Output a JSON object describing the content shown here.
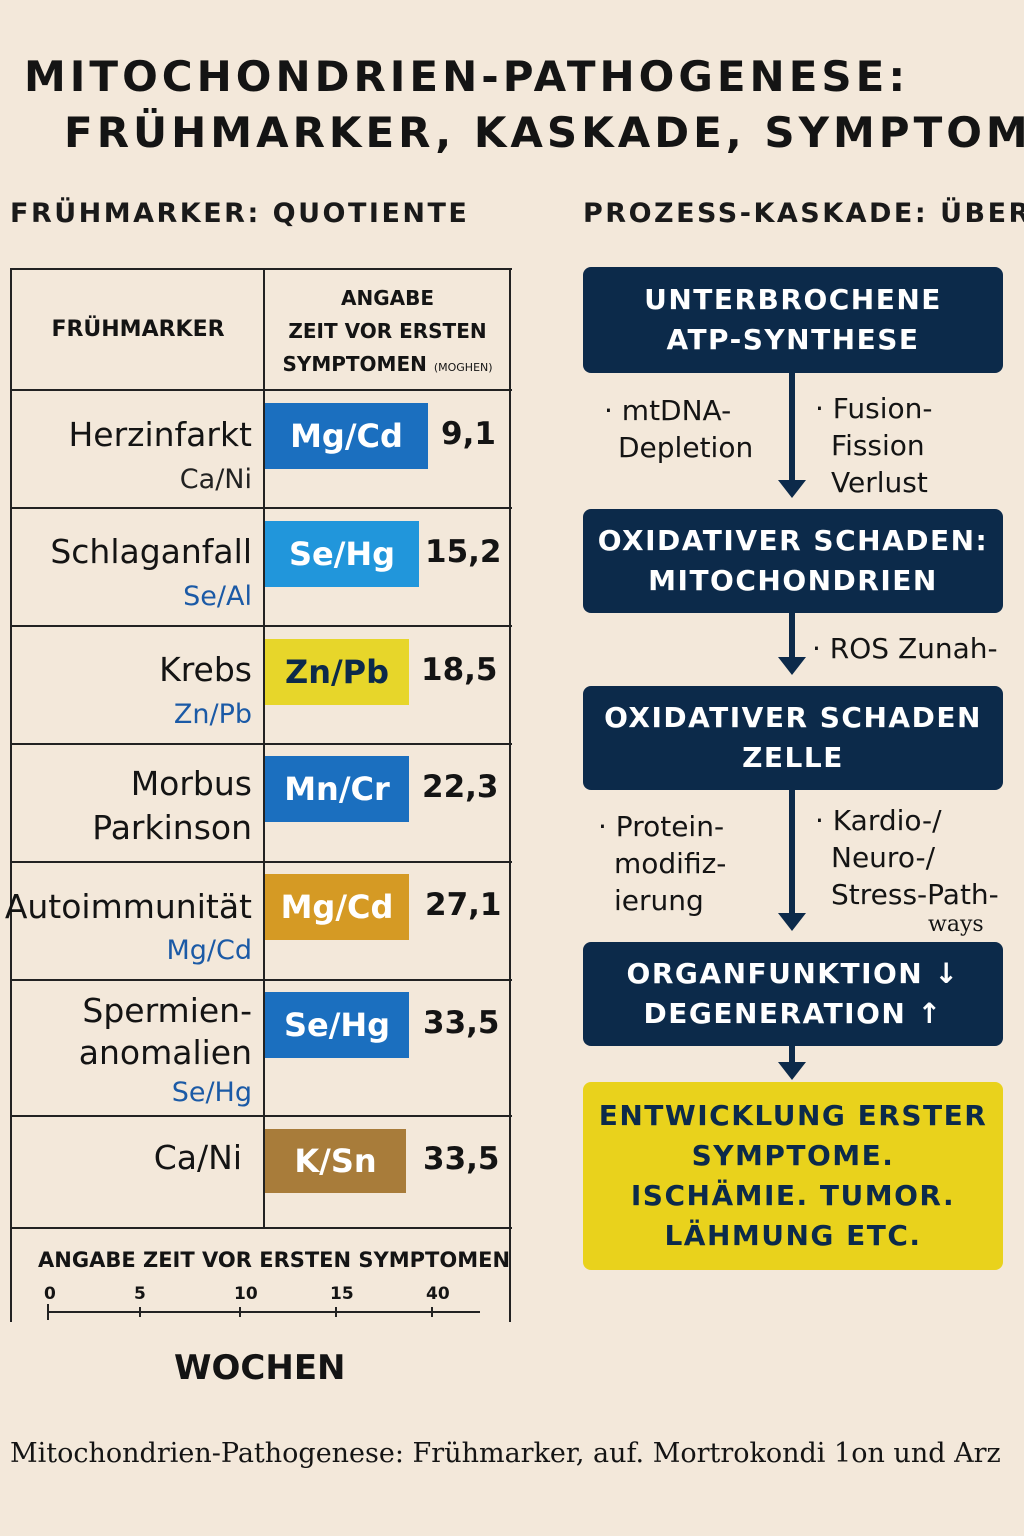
{
  "title": {
    "line1": "MITOCHONDRIEN-PATHOGENESE:",
    "line2": "FRÜHMARKER, KASKADE, SYMPTOME"
  },
  "left_heading": "FRÜHMARKER: QUOTIENTE",
  "right_heading": "PROZESS-KASKADE: ÜBER",
  "table": {
    "header_marker": "FRÜHMARKER",
    "header_time_l1": "ANGABE",
    "header_time_l2": "ZEIT VOR ERSTEN",
    "header_time_l3": "SYMPTOMEN",
    "header_time_unit": "(MOGHEN)",
    "rows": [
      {
        "condition": "Herzinfarkt",
        "sub": "Ca/Ni",
        "sub_color": "#222222",
        "marker": "Mg/Cd",
        "marker_color": "#1b6fbf",
        "marker_text_color": "#ffffff",
        "value": "9,1"
      },
      {
        "condition": "Schlaganfall",
        "sub": "Se/Al",
        "sub_color": "#1b5aa6",
        "marker": "Se/Hg",
        "marker_color": "#2196db",
        "marker_text_color": "#ffffff",
        "value": "15,2"
      },
      {
        "condition": "Krebs",
        "sub": "Zn/Pb",
        "sub_color": "#1b5aa6",
        "marker": "Zn/Pb",
        "marker_color": "#e7d62a",
        "marker_text_color": "#0c2a4a",
        "value": "18,5"
      },
      {
        "condition_l1": "Morbus",
        "condition_l2": "Parkinson",
        "marker": "Mn/Cr",
        "marker_color": "#1b6fbf",
        "marker_text_color": "#ffffff",
        "value": "22,3"
      },
      {
        "condition": "Autoimmunität",
        "sub": "Mg/Cd",
        "sub_color": "#1b5aa6",
        "marker": "Mg/Cd",
        "marker_color": "#d59a24",
        "marker_text_color": "#ffffff",
        "value": "27,1"
      },
      {
        "condition_l1": "Spermien-",
        "condition_l2": "anomalien",
        "sub": "Se/Hg",
        "sub_color": "#1b5aa6",
        "marker": "Se/Hg",
        "marker_color": "#1b6fbf",
        "marker_text_color": "#ffffff",
        "value": "33,5"
      },
      {
        "condition": "Ca/Ni",
        "marker": "K/Sn",
        "marker_color": "#a87c3a",
        "marker_text_color": "#ffffff",
        "value": "33,5"
      }
    ]
  },
  "axis": {
    "title": "ANGABE ZEIT VOR ERSTEN SYMPTOMEN",
    "ticks": [
      "0",
      "5",
      "10",
      "15",
      "40"
    ],
    "unit": "WOCHEN"
  },
  "flow": {
    "box1_l1": "UNTERBROCHENE",
    "box1_l2": "ATP-SYNTHESE",
    "note1_left_l1": "· mtDNA-",
    "note1_left_l2": "Depletion",
    "note1_right_l1": "· Fusion-",
    "note1_right_l2": "Fission",
    "note1_right_l3": "Verlust",
    "box2_l1": "OXIDATIVER SCHADEN:",
    "box2_l2": "MITOCHONDRIEN",
    "note2": "· ROS Zunah-",
    "box3_l1": "OXIDATIVER SCHADEN",
    "box3_l2": "ZELLE",
    "note3_left_l1": "· Protein-",
    "note3_left_l2": "modifiz-",
    "note3_left_l3": "ierung",
    "note3_right_l1": "· Kardio-/",
    "note3_right_l2": "Neuro-/",
    "note3_right_l3": "Stress-Path-",
    "note3_right_l4": "ways",
    "box4_l1": "ORGANFUNKTION ↓",
    "box4_l2": "DEGENERATION ↑",
    "box5_l1": "ENTWICKLUNG ERSTER",
    "box5_l2": "SYMPTOME.",
    "box5_l3": "ISCHÄMIE. TUMOR.",
    "box5_l4": "LÄHMUNG ETC."
  },
  "caption": "Mitochondrien-Pathogenese: Frühmarker, auf. Mortrokondi 1on und Arz"
}
